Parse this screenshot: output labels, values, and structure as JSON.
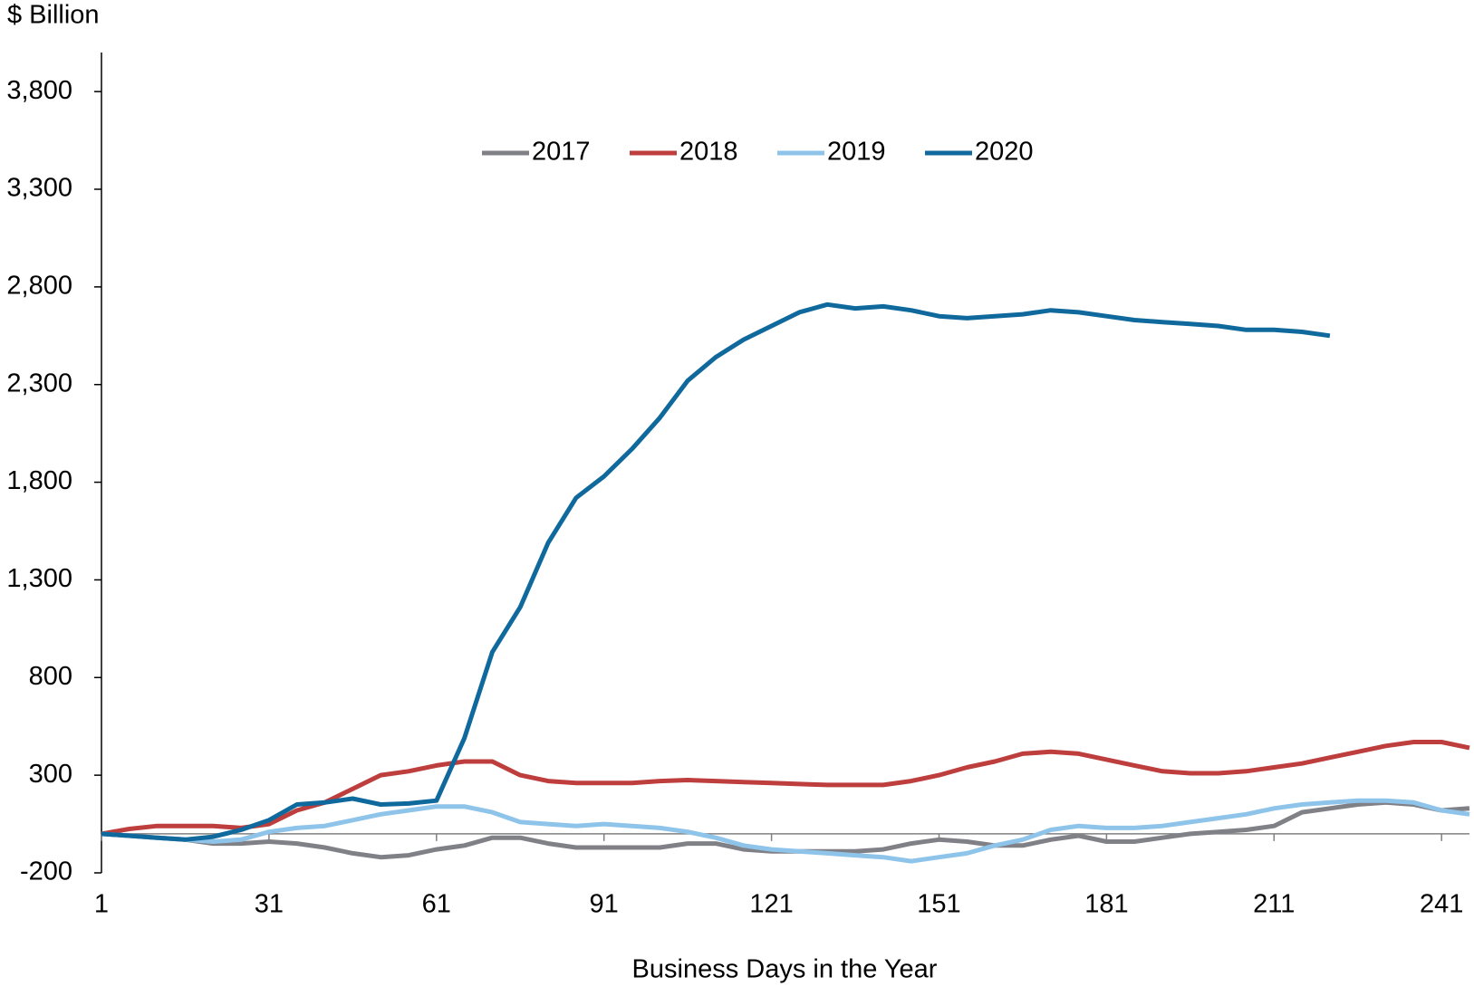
{
  "chart_data": {
    "type": "line",
    "y_label": "$ Billion",
    "x_label": "Business Days in the Year",
    "legend": "top",
    "x": [
      1,
      6,
      11,
      16,
      21,
      26,
      31,
      36,
      41,
      46,
      51,
      56,
      61,
      66,
      71,
      76,
      81,
      86,
      91,
      96,
      101,
      106,
      111,
      116,
      121,
      126,
      131,
      136,
      141,
      146,
      151,
      156,
      161,
      166,
      171,
      176,
      181,
      186,
      191,
      196,
      201,
      206,
      211,
      216,
      221,
      226,
      231,
      236,
      241,
      246
    ],
    "xlim": [
      1,
      246
    ],
    "xticks": [
      1,
      31,
      61,
      91,
      121,
      151,
      181,
      211,
      241
    ],
    "ylim": [
      -200,
      4000
    ],
    "yticks": [
      -200,
      300,
      800,
      {
        "value": 1300,
        "label": "1,300"
      },
      {
        "value": 1800,
        "label": "1,800"
      },
      {
        "value": 2300,
        "label": "2,300"
      },
      {
        "value": 2800,
        "label": "2,800"
      },
      {
        "value": 3300,
        "label": "3,300"
      },
      {
        "value": 3800,
        "label": "3,800"
      }
    ],
    "series": [
      {
        "name": "2017",
        "color": "#808087",
        "values": [
          0,
          -10,
          -20,
          -30,
          -50,
          -50,
          -40,
          -50,
          -70,
          -100,
          -120,
          -110,
          -80,
          -60,
          -20,
          -20,
          -50,
          -70,
          -70,
          -70,
          -70,
          -50,
          -50,
          -80,
          -90,
          -90,
          -90,
          -90,
          -80,
          -50,
          -30,
          -40,
          -60,
          -60,
          -30,
          -10,
          -40,
          -40,
          -20,
          0,
          10,
          20,
          40,
          110,
          130,
          150,
          160,
          150,
          120,
          130
        ]
      },
      {
        "name": "2018",
        "color": "#be3d3d",
        "values": [
          0,
          25,
          40,
          40,
          40,
          30,
          50,
          120,
          160,
          230,
          300,
          320,
          350,
          370,
          370,
          300,
          270,
          260,
          260,
          260,
          270,
          275,
          270,
          265,
          260,
          255,
          250,
          250,
          250,
          270,
          300,
          340,
          370,
          410,
          420,
          410,
          380,
          350,
          320,
          310,
          310,
          320,
          340,
          360,
          390,
          420,
          450,
          470,
          470,
          440
        ]
      },
      {
        "name": "2019",
        "color": "#8ec4ea",
        "values": [
          0,
          -10,
          -20,
          -30,
          -40,
          -30,
          10,
          30,
          40,
          70,
          100,
          120,
          140,
          140,
          110,
          60,
          50,
          40,
          50,
          40,
          30,
          10,
          -20,
          -60,
          -80,
          -90,
          -100,
          -110,
          -120,
          -140,
          -120,
          -100,
          -60,
          -30,
          20,
          40,
          30,
          30,
          40,
          60,
          80,
          100,
          130,
          150,
          160,
          170,
          170,
          160,
          120,
          100
        ]
      },
      {
        "name": "2020",
        "color": "#10699c",
        "values": [
          0,
          -10,
          -20,
          -30,
          -15,
          20,
          70,
          150,
          160,
          180,
          150,
          155,
          170,
          490,
          930,
          1160,
          1490,
          1720,
          1830,
          1970,
          2130,
          2320,
          2440,
          2530,
          2600,
          2670,
          2710,
          2690,
          2700,
          2680,
          2650,
          2640,
          2650,
          2660,
          2680,
          2670,
          2650,
          2630,
          2620,
          2610,
          2600,
          2580,
          2580,
          2570,
          2550,
          null,
          null,
          null,
          null,
          null
        ]
      }
    ]
  }
}
